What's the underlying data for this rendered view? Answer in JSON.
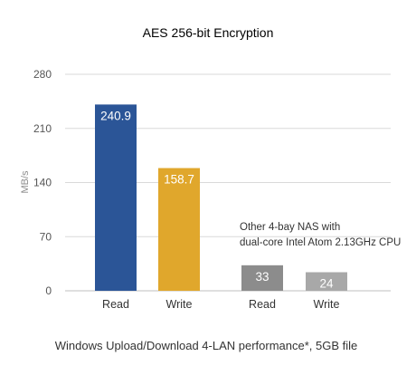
{
  "chart_data": {
    "type": "bar",
    "title": "AES 256-bit Encryption",
    "ylabel": "MB/s",
    "xlabel": "",
    "caption": "Windows Upload/Download 4-LAN performance*, 5GB file",
    "annotation": [
      "Other 4-bay NAS with",
      "dual-core Intel Atom 2.13GHz CPU"
    ],
    "ylim": [
      0,
      280
    ],
    "yticks": [
      0,
      70,
      140,
      210,
      280
    ],
    "grid": true,
    "bars": [
      {
        "category": "Read",
        "value": 240.9,
        "label": "240.9",
        "color": "#2b5597",
        "label_color": "#ffffff",
        "group": "featured"
      },
      {
        "category": "Write",
        "value": 158.7,
        "label": "158.7",
        "color": "#e0a72c",
        "label_color": "#ffffff",
        "group": "featured"
      },
      {
        "category": "Read",
        "value": 33,
        "label": "33",
        "color": "#8c8c8c",
        "label_color": "#ffffff",
        "group": "other"
      },
      {
        "category": "Write",
        "value": 24,
        "label": "24",
        "color": "#a8a8a8",
        "label_color": "#ffffff",
        "group": "other"
      }
    ]
  }
}
